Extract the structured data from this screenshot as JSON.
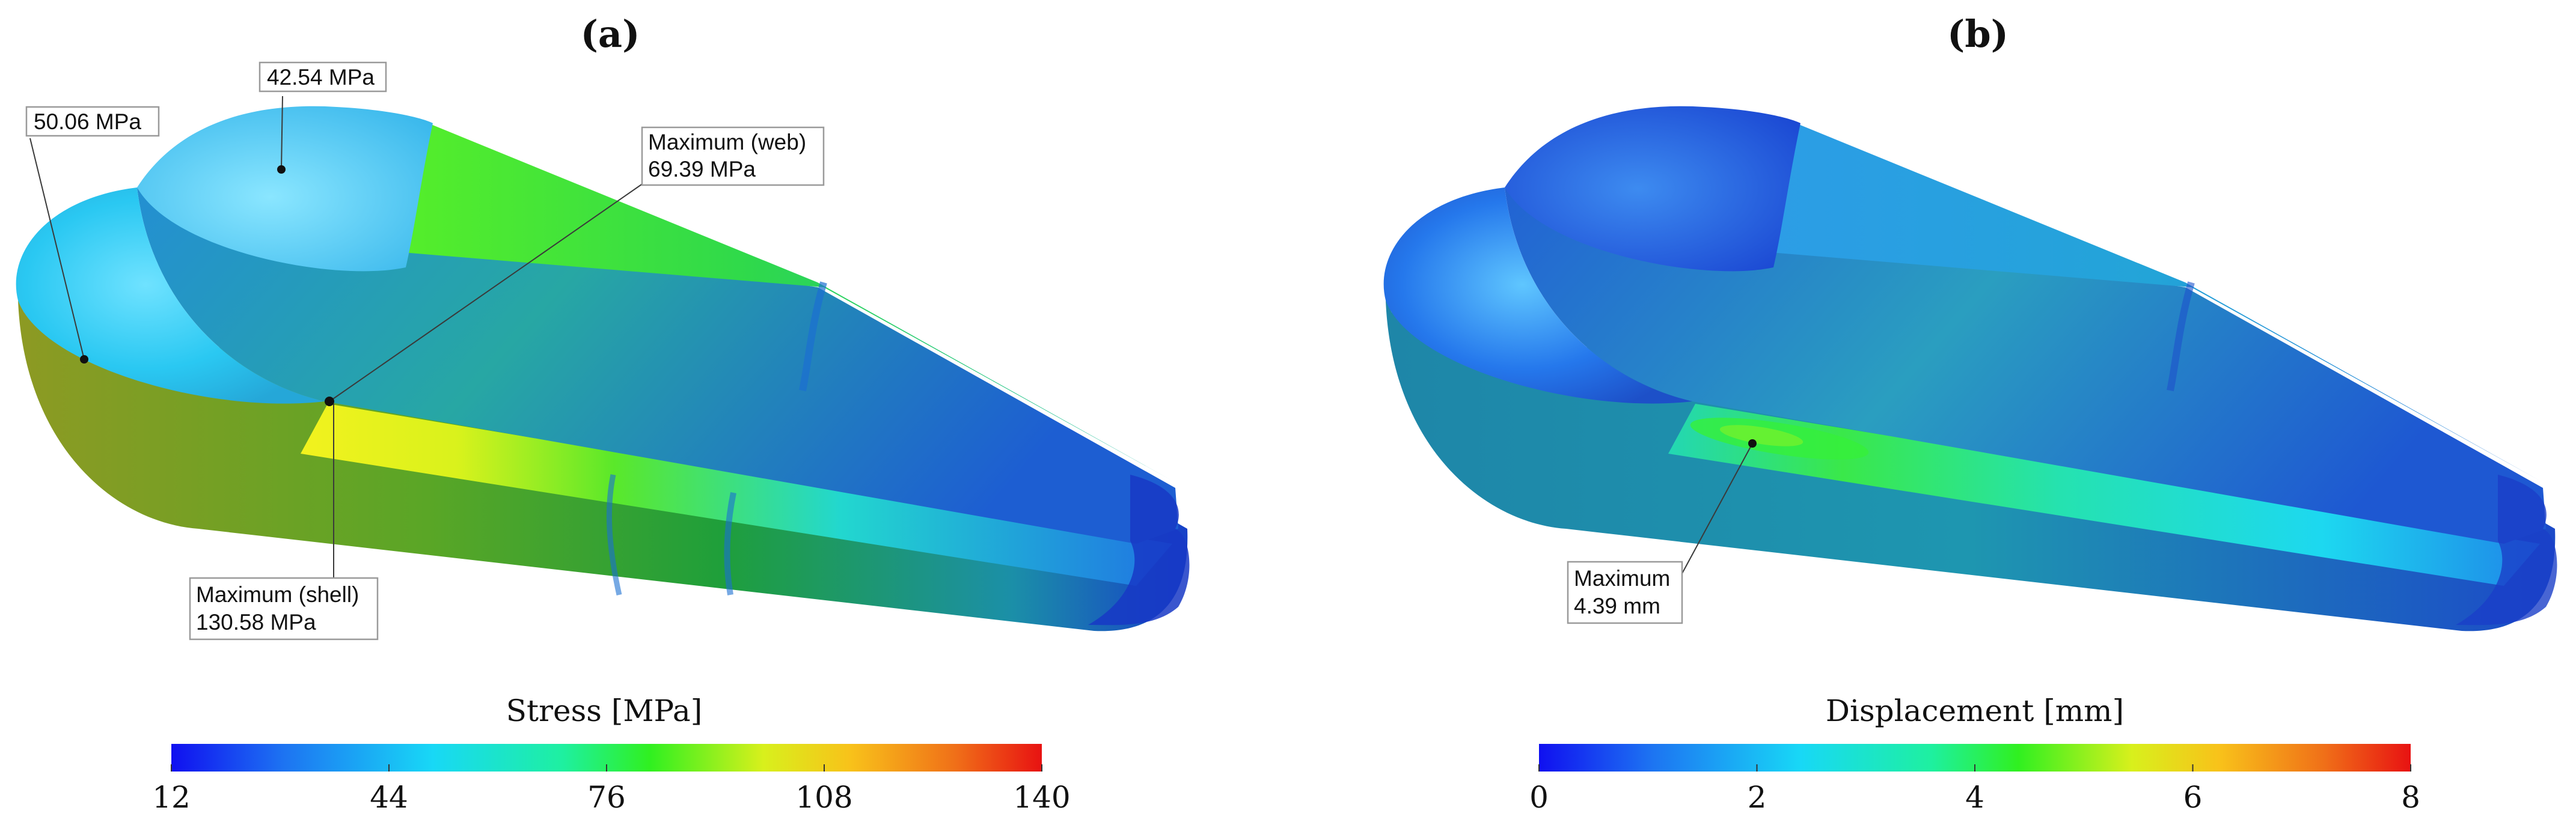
{
  "panels": [
    {
      "label": "(a)",
      "colorbar": {
        "title": "Stress [MPa]",
        "ticks": [
          "12",
          "44",
          "76",
          "108",
          "140"
        ]
      },
      "annotations": [
        {
          "lines": [
            "42.54 MPa"
          ]
        },
        {
          "lines": [
            "50.06 MPa"
          ]
        },
        {
          "lines": [
            "Maximum (web)",
            "69.39 MPa"
          ]
        },
        {
          "lines": [
            "Maximum (shell)",
            "130.58 MPa"
          ]
        }
      ]
    },
    {
      "label": "(b)",
      "colorbar": {
        "title": "Displacement [mm]",
        "ticks": [
          "0",
          "2",
          "4",
          "6",
          "8"
        ]
      },
      "annotations": [
        {
          "lines": [
            "Maximum",
            "4.39 mm"
          ]
        }
      ]
    }
  ],
  "colormap": [
    "#1010f0",
    "#1d74f2",
    "#18d8f6",
    "#1ef0a0",
    "#30f020",
    "#d8f01c",
    "#f8c21a",
    "#f07018",
    "#e81212"
  ]
}
